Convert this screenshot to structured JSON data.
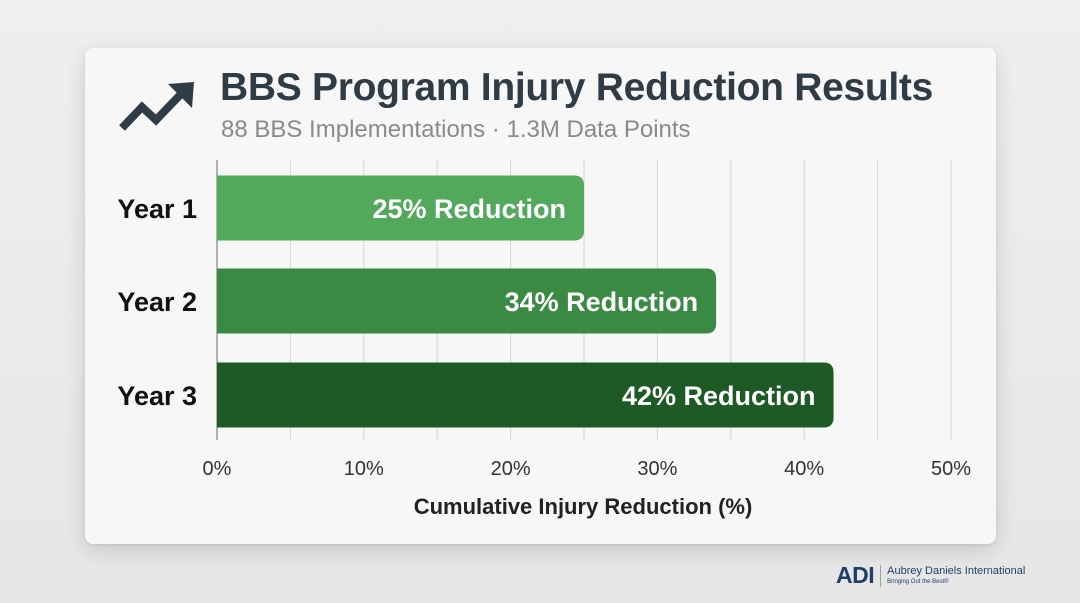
{
  "header": {
    "title": "BBS Program Injury Reduction Results",
    "subtitle": "88 BBS Implementations · 1.3M Data Points",
    "icon": "trend-up-arrow-icon"
  },
  "chart_data": {
    "type": "bar",
    "orientation": "horizontal",
    "categories": [
      "Year 1",
      "Year 2",
      "Year 3"
    ],
    "values": [
      25,
      34,
      42
    ],
    "data_labels": [
      "25% Reduction",
      "34% Reduction",
      "42% Reduction"
    ],
    "xlabel": "Cumulative Injury Reduction (%)",
    "ylabel": "",
    "xlim": [
      0,
      50
    ],
    "x_ticks": [
      "0%",
      "10%",
      "20%",
      "30%",
      "40%",
      "50%"
    ],
    "grid": true,
    "bar_colors": [
      "#52a85b",
      "#3a8a44",
      "#1e5a25"
    ]
  },
  "footer": {
    "logo_mark": "ADI",
    "logo_name": "Aubrey Daniels International",
    "logo_tagline": "Bringing Out the Best®",
    "brand_color": "#1f3e6c"
  }
}
